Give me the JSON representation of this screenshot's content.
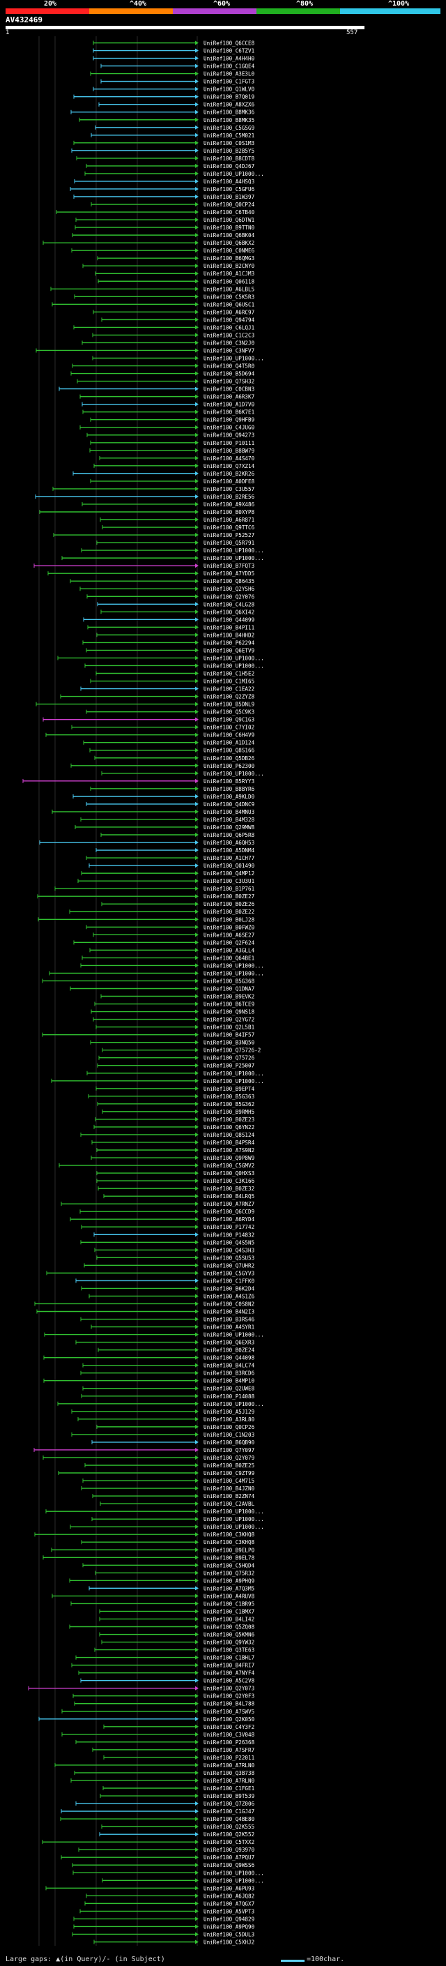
{
  "header": {
    "scale_labels": [
      "20%",
      "^40%",
      "^60%",
      "^80%",
      "^100%"
    ],
    "scale_colors": [
      "#ff2020",
      "#ff8000",
      "#b040d0",
      "#20b020",
      "#30c8e8"
    ],
    "query_id": "AV432469",
    "start_pos": "1",
    "end_pos": "557"
  },
  "colors": {
    "cyan": "#48c8f0",
    "green": "#30c030",
    "magenta": "#d040d0",
    "label": "#ffffff"
  },
  "hit_ids": [
    "UniRef100_Q6CCE8",
    "UniRef100_C6TZV1",
    "UniRef100_A4H4H0",
    "UniRef100_C1GQE4",
    "UniRef100_A3E3L0",
    "UniRef100_C1FGT3",
    "UniRef100_Q1WLV0",
    "UniRef100_B7Q019",
    "UniRef100_A8XZX6",
    "UniRef100_B8MK36",
    "UniRef100_B8MK35",
    "UniRef100_C5GSG9",
    "UniRef100_C5M021",
    "UniRef100_C0S1M3",
    "UniRef100_B2B5Y5",
    "UniRef100_B8CDT8",
    "UniRef100_Q4DJ67",
    "UniRef100_UP1000...",
    "UniRef100_A4HSQ3",
    "UniRef100_C5GFU6",
    "UniRef100_B1W397",
    "UniRef100_Q0CP24",
    "UniRef100_C6TB40",
    "UniRef100_Q6DTW1",
    "UniRef100_B9TTN0",
    "UniRef100_Q6BK04",
    "UniRef100_Q6BKX2",
    "UniRef100_C0NME6",
    "UniRef100_B6QMG3",
    "UniRef100_B2CNY0",
    "UniRef100_A1CJM3",
    "UniRef100_Q06118",
    "UniRef100_A6LBL5",
    "UniRef100_C5K5R3",
    "UniRef100_Q6USC1",
    "UniRef100_A6RC97",
    "UniRef100_Q94794",
    "UniRef100_C6LQJ1",
    "UniRef100_C1C2C3",
    "UniRef100_C3N2J0",
    "UniRef100_C3NFV7",
    "UniRef100_UP1000...",
    "UniRef100_Q4T5R0",
    "UniRef100_B5D694",
    "UniRef100_Q7SH32",
    "UniRef100_C0CBN3",
    "UniRef100_A6R3K7",
    "UniRef100_A1D7V0",
    "UniRef100_B6K7E1",
    "UniRef100_Q9HFB9",
    "UniRef100_C4JUG0",
    "UniRef100_Q94273",
    "UniRef100_P10111",
    "UniRef100_B8BW79",
    "UniRef100_A4S470",
    "UniRef100_Q7XZ14",
    "UniRef100_B2KR26",
    "UniRef100_A0DFE8",
    "UniRef100_C3U557",
    "UniRef100_B2RE56",
    "UniRef100_A9X486",
    "UniRef100_B0XYP8",
    "UniRef100_A6R871",
    "UniRef100_Q9TTC6",
    "UniRef100_P52527",
    "UniRef100_Q5R791",
    "UniRef100_UP1000...",
    "UniRef100_UP1000...",
    "UniRef100_B7FQT3",
    "UniRef100_A7YDD5",
    "UniRef100_Q86435",
    "UniRef100_Q2YSH6",
    "UniRef100_Q2Y076",
    "UniRef100_C4LG28",
    "UniRef100_Q6XI42",
    "UniRef100_Q44099",
    "UniRef100_B4PI11",
    "UniRef100_B4HHD2",
    "UniRef100_P62294",
    "UniRef100_Q6ETV9",
    "UniRef100_UP1000...",
    "UniRef100_UP1000...",
    "UniRef100_C1H5E2",
    "UniRef100_C1MI65",
    "UniRef100_C1EA22",
    "UniRef100_Q2ZYZ8",
    "UniRef100_B5DNL9",
    "UniRef100_Q5C9K3",
    "UniRef100_Q9C1G3",
    "UniRef100_C7YI02",
    "UniRef100_C6H4V9",
    "UniRef100_A1D124",
    "UniRef100_Q8S166",
    "UniRef100_Q5DB26",
    "UniRef100_P62300",
    "UniRef100_UP1000...",
    "UniRef100_B5RYY3",
    "UniRef100_B8BYR6",
    "UniRef100_A9KLD0",
    "UniRef100_Q4DNC9",
    "UniRef100_B4MNU3",
    "UniRef100_B4M328",
    "UniRef100_Q29MW8",
    "UniRef100_Q6P5R8",
    "UniRef100_A6QH53",
    "UniRef100_A5DNM4",
    "UniRef100_A1CH77",
    "UniRef100_Q01490",
    "UniRef100_Q4MP12",
    "UniRef100_C3U3U1",
    "UniRef100_B1P761",
    "UniRef100_B0ZE27",
    "UniRef100_B0ZE26",
    "UniRef100_B0ZE22",
    "UniRef100_B0LJ28",
    "UniRef100_B0FWZ0",
    "UniRef100_A6SE27",
    "UniRef100_Q2F624",
    "UniRef100_A3GLL4",
    "UniRef100_Q64BE1",
    "UniRef100_UP1000...",
    "UniRef100_UP1000...",
    "UniRef100_B5G368",
    "UniRef100_Q1DNA7",
    "UniRef100_B9EVK2",
    "UniRef100_B6TCE9",
    "UniRef100_Q9NS18",
    "UniRef100_Q2YG72",
    "UniRef100_Q2L5B1",
    "UniRef100_B4IF57",
    "UniRef100_B3NQ50",
    "UniRef100_Q75726-2",
    "UniRef100_Q75726",
    "UniRef100_P25007",
    "UniRef100_UP1000...",
    "UniRef100_UP1000...",
    "UniRef100_B9EPT4",
    "UniRef100_B5G363",
    "UniRef100_B5G362",
    "UniRef100_B9RMH5",
    "UniRef100_B0ZE23",
    "UniRef100_Q6YN22",
    "UniRef100_Q8S124",
    "UniRef100_B4PSR4",
    "UniRef100_A7S9N2",
    "UniRef100_Q9P8W9",
    "UniRef100_C5GMV2",
    "UniRef100_Q0HXS3",
    "UniRef100_C3K166",
    "UniRef100_B0ZE32",
    "UniRef100_B4LRQ5",
    "UniRef100_A7RNZ7",
    "UniRef100_Q6CCD9",
    "UniRef100_A6RYD4",
    "UniRef100_P17742",
    "UniRef100_P14832",
    "UniRef100_Q4S5N5",
    "UniRef100_Q4S3H3",
    "UniRef100_Q5SU53",
    "UniRef100_Q7UHR2",
    "UniRef100_C5GYV3",
    "UniRef100_C1FFK0",
    "UniRef100_B6K2D4",
    "UniRef100_A4S1Z6",
    "UniRef100_C0S8N2",
    "UniRef100_B4N2I3",
    "UniRef100_B3RS46",
    "UniRef100_A4SYR1",
    "UniRef100_UP1000...",
    "UniRef100_Q6EXR3",
    "UniRef100_B0ZE24",
    "UniRef100_Q44098",
    "UniRef100_B4LC74",
    "UniRef100_B3RCD6",
    "UniRef100_B4MP10",
    "UniRef100_Q2UWE8",
    "UniRef100_P14088",
    "UniRef100_UP1000...",
    "UniRef100_A5J129",
    "UniRef100_A3RL80",
    "UniRef100_Q0CP26",
    "UniRef100_C1N203",
    "UniRef100_B6QB90",
    "UniRef100_Q7Y097",
    "UniRef100_Q2Y079",
    "UniRef100_B0ZE25",
    "UniRef100_C9ZT99",
    "UniRef100_C4M715",
    "UniRef100_B4JZN0",
    "UniRef100_B2ZN74",
    "UniRef100_C2AVBL",
    "UniRef100_UP1000...",
    "UniRef100_UP1000...",
    "UniRef100_UP1000...",
    "UniRef100_C3KHQ8",
    "UniRef100_C3KHQ8",
    "UniRef100_B9ELP0",
    "UniRef100_B9EL78",
    "UniRef100_C5HQD4",
    "UniRef100_Q75R32",
    "UniRef100_A9PHQ9",
    "UniRef100_A7Q3M5",
    "UniRef100_A4RUV8",
    "UniRef100_C1BR95",
    "UniRef100_C1BMX7",
    "UniRef100_B4LI42",
    "UniRef100_Q5ZQ08",
    "UniRef100_Q5KMN6",
    "UniRef100_Q9YW32",
    "UniRef100_Q3TE63",
    "UniRef100_C1BHL7",
    "UniRef100_B4FRI7",
    "UniRef100_A7NYF4",
    "UniRef100_A5C2V8",
    "UniRef100_Q2Y073",
    "UniRef100_Q2Y0F3",
    "UniRef100_B4L788",
    "UniRef100_A7SWV5",
    "UniRef100_Q2K050",
    "UniRef100_C4Y3F2",
    "UniRef100_C3V048",
    "UniRef100_P26368",
    "UniRef100_A7SFR7",
    "UniRef100_P22011",
    "UniRef100_A7RLN0",
    "UniRef100_Q3B738",
    "UniRef100_A7RLN0",
    "UniRef100_C1FGE1",
    "UniRef100_B9T539",
    "UniRef100_Q7Z006",
    "UniRef100_C1GJ47",
    "UniRef100_Q4BE80",
    "UniRef100_Q2K555",
    "UniRef100_Q2K552",
    "UniRef100_C5TXX2",
    "UniRef100_Q93970",
    "UniRef100_A7PQU7",
    "UniRef100_Q9WSS6",
    "UniRef100_UP1000...",
    "UniRef100_UP1000...",
    "UniRef100_A6PU93",
    "UniRef100_A6JQ82",
    "UniRef100_A7QGX7",
    "UniRef100_A5VPT3",
    "UniRef100_Q94829",
    "UniRef100_A9PQ90",
    "UniRef100_C5DUL3",
    "UniRef100_C5XHJ2"
  ],
  "footer": {
    "legend_gaps": "Large gaps: ▲(in Query)/- (in Subject)",
    "legend_scale": "=100char."
  }
}
